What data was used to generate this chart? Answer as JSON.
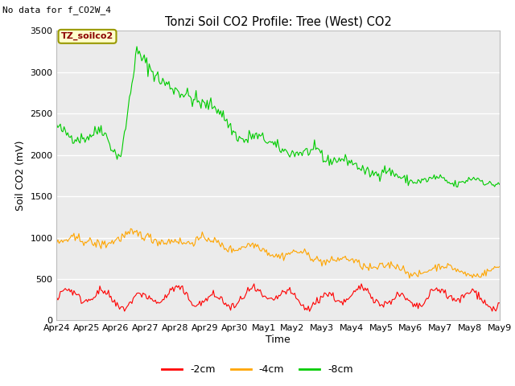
{
  "title": "Tonzi Soil CO2 Profile: Tree (West) CO2",
  "no_data_text": "No data for f_CO2W_4",
  "ylabel": "Soil CO2 (mV)",
  "xlabel": "Time",
  "legend_label": "TZ_soilco2",
  "series_labels": [
    "-2cm",
    "-4cm",
    "-8cm"
  ],
  "series_colors": [
    "#ff0000",
    "#ffa500",
    "#00cc00"
  ],
  "ylim": [
    0,
    3500
  ],
  "plot_bg_color": "#ebebeb",
  "fig_bg_color": "#ffffff",
  "xtick_labels": [
    "Apr 24",
    "Apr 25",
    "Apr 26",
    "Apr 27",
    "Apr 28",
    "Apr 29",
    "Apr 30",
    "May 1",
    "May 2",
    "May 3",
    "May 4",
    "May 5",
    "May 6",
    "May 7",
    "May 8",
    "May 9"
  ],
  "ytick_labels": [
    "0",
    "500",
    "1000",
    "1500",
    "2000",
    "2500",
    "3000",
    "3500"
  ],
  "ytick_values": [
    0,
    500,
    1000,
    1500,
    2000,
    2500,
    3000,
    3500
  ],
  "n_points": 360,
  "seed": 42
}
